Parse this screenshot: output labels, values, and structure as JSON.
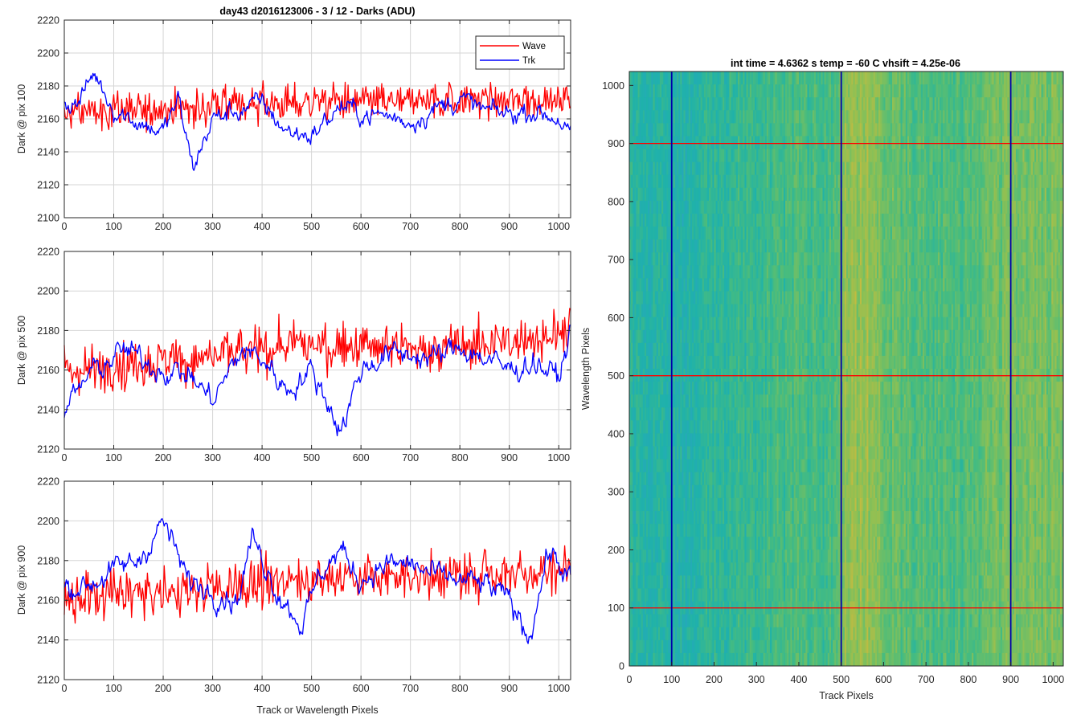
{
  "figure_title": "day43 d2016123006 - 3 / 12 - Darks (ADU)",
  "colors": {
    "wave": "#ff0000",
    "trk": "#0000ff",
    "grid": "#d6d6d6",
    "axis": "#262626"
  },
  "chart_data": [
    {
      "type": "line",
      "title": "day43 d2016123006 - 3 / 12 - Darks (ADU)",
      "xlabel": "",
      "ylabel": "Dark @ pix 100",
      "xlim": [
        0,
        1024
      ],
      "ylim": [
        2100,
        2220
      ],
      "xticks": [
        0,
        100,
        200,
        300,
        400,
        500,
        600,
        700,
        800,
        900,
        1000
      ],
      "yticks": [
        2100,
        2120,
        2140,
        2160,
        2180,
        2200,
        2220
      ],
      "grid": true,
      "legend": "top-right",
      "series": [
        {
          "name": "Wave",
          "color": "#ff0000",
          "mean": 2168,
          "noise": 9,
          "trend_x": [
            0,
            100,
            200,
            300,
            400,
            500,
            600,
            700,
            800,
            900,
            1024
          ],
          "trend_y": [
            2163,
            2165,
            2166,
            2167,
            2169,
            2170,
            2171,
            2170,
            2172,
            2171,
            2172
          ]
        },
        {
          "name": "Trk",
          "color": "#0000ff",
          "mean": 2164,
          "noise": 4,
          "trend_x": [
            0,
            30,
            60,
            100,
            150,
            200,
            230,
            260,
            300,
            350,
            400,
            450,
            500,
            560,
            600,
            650,
            700,
            750,
            800,
            850,
            900,
            950,
            1000,
            1024
          ],
          "trend_y": [
            2168,
            2170,
            2188,
            2166,
            2158,
            2152,
            2172,
            2130,
            2160,
            2165,
            2170,
            2152,
            2150,
            2168,
            2163,
            2162,
            2158,
            2166,
            2172,
            2165,
            2163,
            2165,
            2160,
            2150
          ]
        }
      ]
    },
    {
      "type": "line",
      "xlabel": "",
      "ylabel": "Dark @ pix 500",
      "xlim": [
        0,
        1024
      ],
      "ylim": [
        2120,
        2220
      ],
      "xticks": [
        0,
        100,
        200,
        300,
        400,
        500,
        600,
        700,
        800,
        900,
        1000
      ],
      "yticks": [
        2120,
        2140,
        2160,
        2180,
        2200,
        2220
      ],
      "grid": true,
      "series": [
        {
          "name": "Wave",
          "color": "#ff0000",
          "mean": 2166,
          "noise": 10,
          "trend_x": [
            0,
            100,
            200,
            300,
            400,
            500,
            600,
            700,
            800,
            900,
            1024
          ],
          "trend_y": [
            2160,
            2162,
            2164,
            2167,
            2170,
            2173,
            2172,
            2170,
            2172,
            2174,
            2180
          ]
        },
        {
          "name": "Trk",
          "color": "#0000ff",
          "mean": 2162,
          "noise": 4,
          "trend_x": [
            0,
            50,
            120,
            200,
            250,
            300,
            360,
            400,
            450,
            500,
            530,
            560,
            600,
            650,
            700,
            750,
            800,
            850,
            900,
            950,
            1000,
            1024
          ],
          "trend_y": [
            2140,
            2158,
            2170,
            2160,
            2158,
            2145,
            2170,
            2166,
            2150,
            2160,
            2145,
            2130,
            2160,
            2168,
            2168,
            2166,
            2172,
            2166,
            2160,
            2164,
            2156,
            2180
          ]
        }
      ]
    },
    {
      "type": "line",
      "xlabel": "Track or Wavelength Pixels",
      "ylabel": "Dark @ pix 900",
      "xlim": [
        0,
        1024
      ],
      "ylim": [
        2120,
        2220
      ],
      "xticks": [
        0,
        100,
        200,
        300,
        400,
        500,
        600,
        700,
        800,
        900,
        1000
      ],
      "yticks": [
        2120,
        2140,
        2160,
        2180,
        2200,
        2220
      ],
      "grid": true,
      "series": [
        {
          "name": "Wave",
          "color": "#ff0000",
          "mean": 2166,
          "noise": 10,
          "trend_x": [
            0,
            100,
            200,
            300,
            400,
            500,
            600,
            700,
            800,
            900,
            1024
          ],
          "trend_y": [
            2160,
            2163,
            2164,
            2166,
            2169,
            2171,
            2172,
            2172,
            2173,
            2174,
            2176
          ]
        },
        {
          "name": "Trk",
          "color": "#0000ff",
          "mean": 2172,
          "noise": 4,
          "trend_x": [
            0,
            50,
            100,
            150,
            200,
            250,
            300,
            350,
            380,
            430,
            480,
            520,
            560,
            600,
            650,
            700,
            750,
            800,
            850,
            900,
            940,
            980,
            1024
          ],
          "trend_y": [
            2166,
            2168,
            2175,
            2180,
            2200,
            2170,
            2165,
            2160,
            2192,
            2165,
            2148,
            2175,
            2185,
            2170,
            2178,
            2178,
            2172,
            2170,
            2168,
            2160,
            2142,
            2185,
            2170
          ]
        }
      ]
    },
    {
      "type": "heatmap",
      "title": "int time = 4.6362 s    temp = -60 C    vhsift = 4.25e-06",
      "xlabel": "Track Pixels",
      "ylabel": "Wavelength Pixels",
      "xlim": [
        0,
        1024
      ],
      "ylim": [
        0,
        1024
      ],
      "xticks": [
        0,
        100,
        200,
        300,
        400,
        500,
        600,
        700,
        800,
        900,
        1000
      ],
      "yticks": [
        0,
        100,
        200,
        300,
        400,
        500,
        600,
        700,
        800,
        900,
        1000
      ],
      "colormap": [
        "#2aa2c4",
        "#1fb2aa",
        "#48bc7e",
        "#8cc055",
        "#c6bb3f"
      ],
      "column_warmth": [
        {
          "x": 0,
          "w": 0.3
        },
        {
          "x": 100,
          "w": 0.25
        },
        {
          "x": 200,
          "w": 0.33
        },
        {
          "x": 300,
          "w": 0.42
        },
        {
          "x": 400,
          "w": 0.48
        },
        {
          "x": 480,
          "w": 0.45
        },
        {
          "x": 500,
          "w": 0.75
        },
        {
          "x": 560,
          "w": 0.82
        },
        {
          "x": 600,
          "w": 0.62
        },
        {
          "x": 700,
          "w": 0.5
        },
        {
          "x": 800,
          "w": 0.52
        },
        {
          "x": 860,
          "w": 0.62
        },
        {
          "x": 900,
          "w": 0.7
        },
        {
          "x": 960,
          "w": 0.66
        },
        {
          "x": 1024,
          "w": 0.72
        }
      ],
      "vertical_lines": {
        "color": "#0000aa",
        "x": [
          100,
          500,
          900
        ]
      },
      "horizontal_lines": {
        "color": "#ff0000",
        "y": [
          100,
          500,
          900
        ]
      }
    }
  ]
}
